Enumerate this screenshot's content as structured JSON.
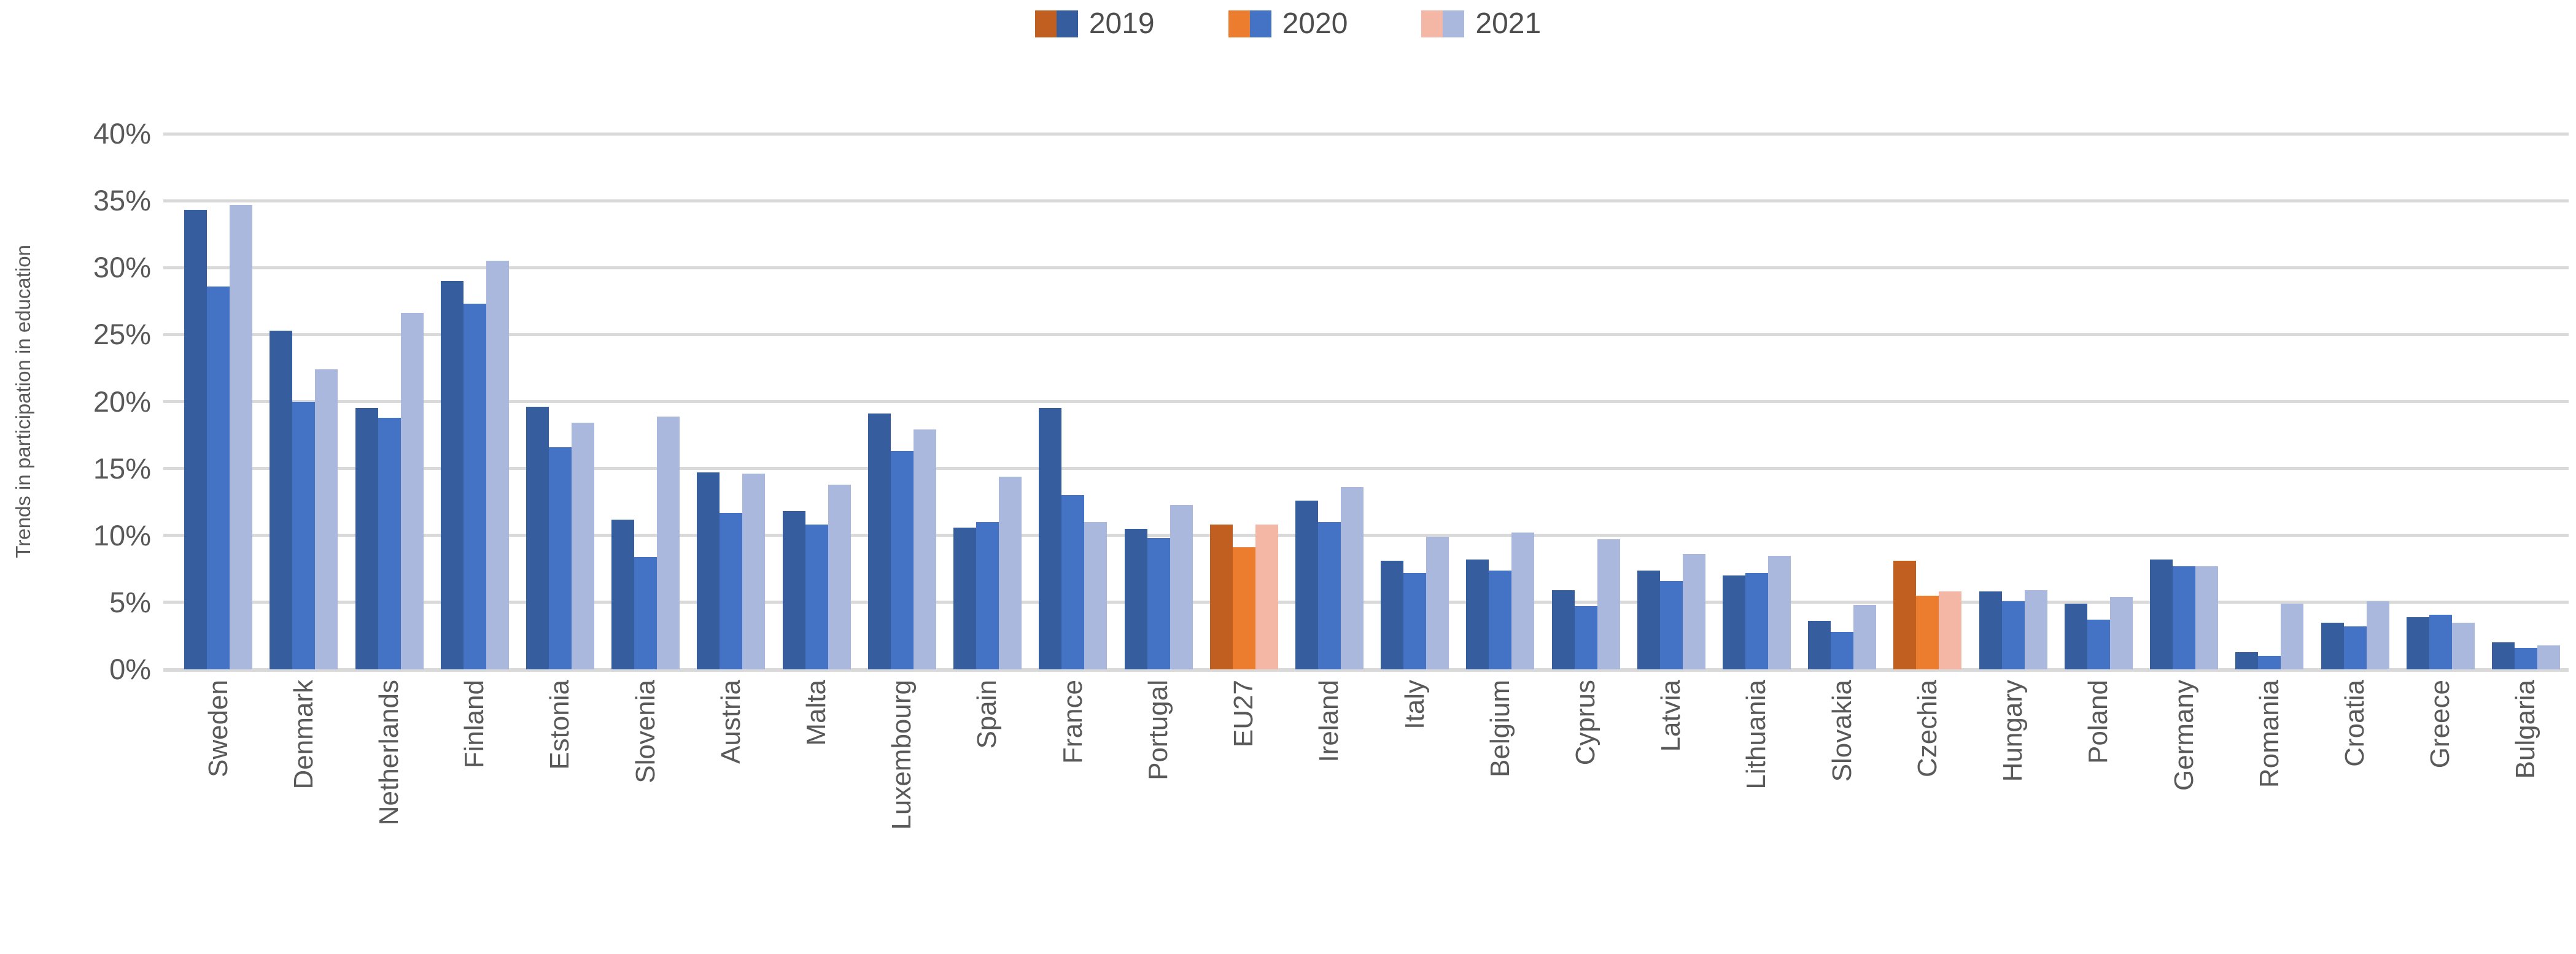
{
  "chart_data": {
    "type": "bar",
    "title": "",
    "ylabel": "Trends in participation in education",
    "xlabel": "",
    "ylim": [
      0,
      40
    ],
    "ytick_step": 5,
    "ytick_suffix": "%",
    "grid": true,
    "legend_position": "top",
    "legend_entries": [
      "2019",
      "2020",
      "2021"
    ],
    "categories": [
      "Sweden",
      "Denmark",
      "Netherlands",
      "Finland",
      "Estonia",
      "Slovenia",
      "Austria",
      "Malta",
      "Luxembourg",
      "Spain",
      "France",
      "Portugal",
      "EU27",
      "Ireland",
      "Italy",
      "Belgium",
      "Cyprus",
      "Latvia",
      "Lithuania",
      "Slovakia",
      "Czechia",
      "Hungary",
      "Poland",
      "Germany",
      "Romania",
      "Croatia",
      "Greece",
      "Bulgaria"
    ],
    "series": [
      {
        "name": "2019",
        "values": [
          34.3,
          25.3,
          19.5,
          29.0,
          19.6,
          11.2,
          14.7,
          11.8,
          19.1,
          10.6,
          19.5,
          10.5,
          10.8,
          12.6,
          8.1,
          8.2,
          5.9,
          7.4,
          7.0,
          3.6,
          8.1,
          5.8,
          4.9,
          8.2,
          1.3,
          3.5,
          3.9,
          2.0
        ]
      },
      {
        "name": "2020",
        "values": [
          28.6,
          20.0,
          18.8,
          27.3,
          16.6,
          8.4,
          11.7,
          10.8,
          16.3,
          11.0,
          13.0,
          9.8,
          9.1,
          11.0,
          7.2,
          7.4,
          4.7,
          6.6,
          7.2,
          2.8,
          5.5,
          5.1,
          3.7,
          7.7,
          1.0,
          3.2,
          4.1,
          1.6
        ]
      },
      {
        "name": "2021",
        "values": [
          34.7,
          22.4,
          26.6,
          30.5,
          18.4,
          18.9,
          14.6,
          13.8,
          17.9,
          14.4,
          11.0,
          12.3,
          10.8,
          13.6,
          9.9,
          10.2,
          9.7,
          8.6,
          8.5,
          4.8,
          5.8,
          5.9,
          5.4,
          7.7,
          4.9,
          5.1,
          3.5,
          1.8
        ]
      }
    ],
    "highlighted_categories": [
      "EU27",
      "Czechia"
    ],
    "colors": {
      "series_blue": [
        "#365D9E",
        "#4472C4",
        "#A9B8DC"
      ],
      "series_orange": [
        "#C05F20",
        "#EC7D2F",
        "#F4B7A5"
      ],
      "gridline": "#D9D9D9",
      "axis_text": "#595959",
      "legend_text": "#4D4D4D"
    }
  }
}
